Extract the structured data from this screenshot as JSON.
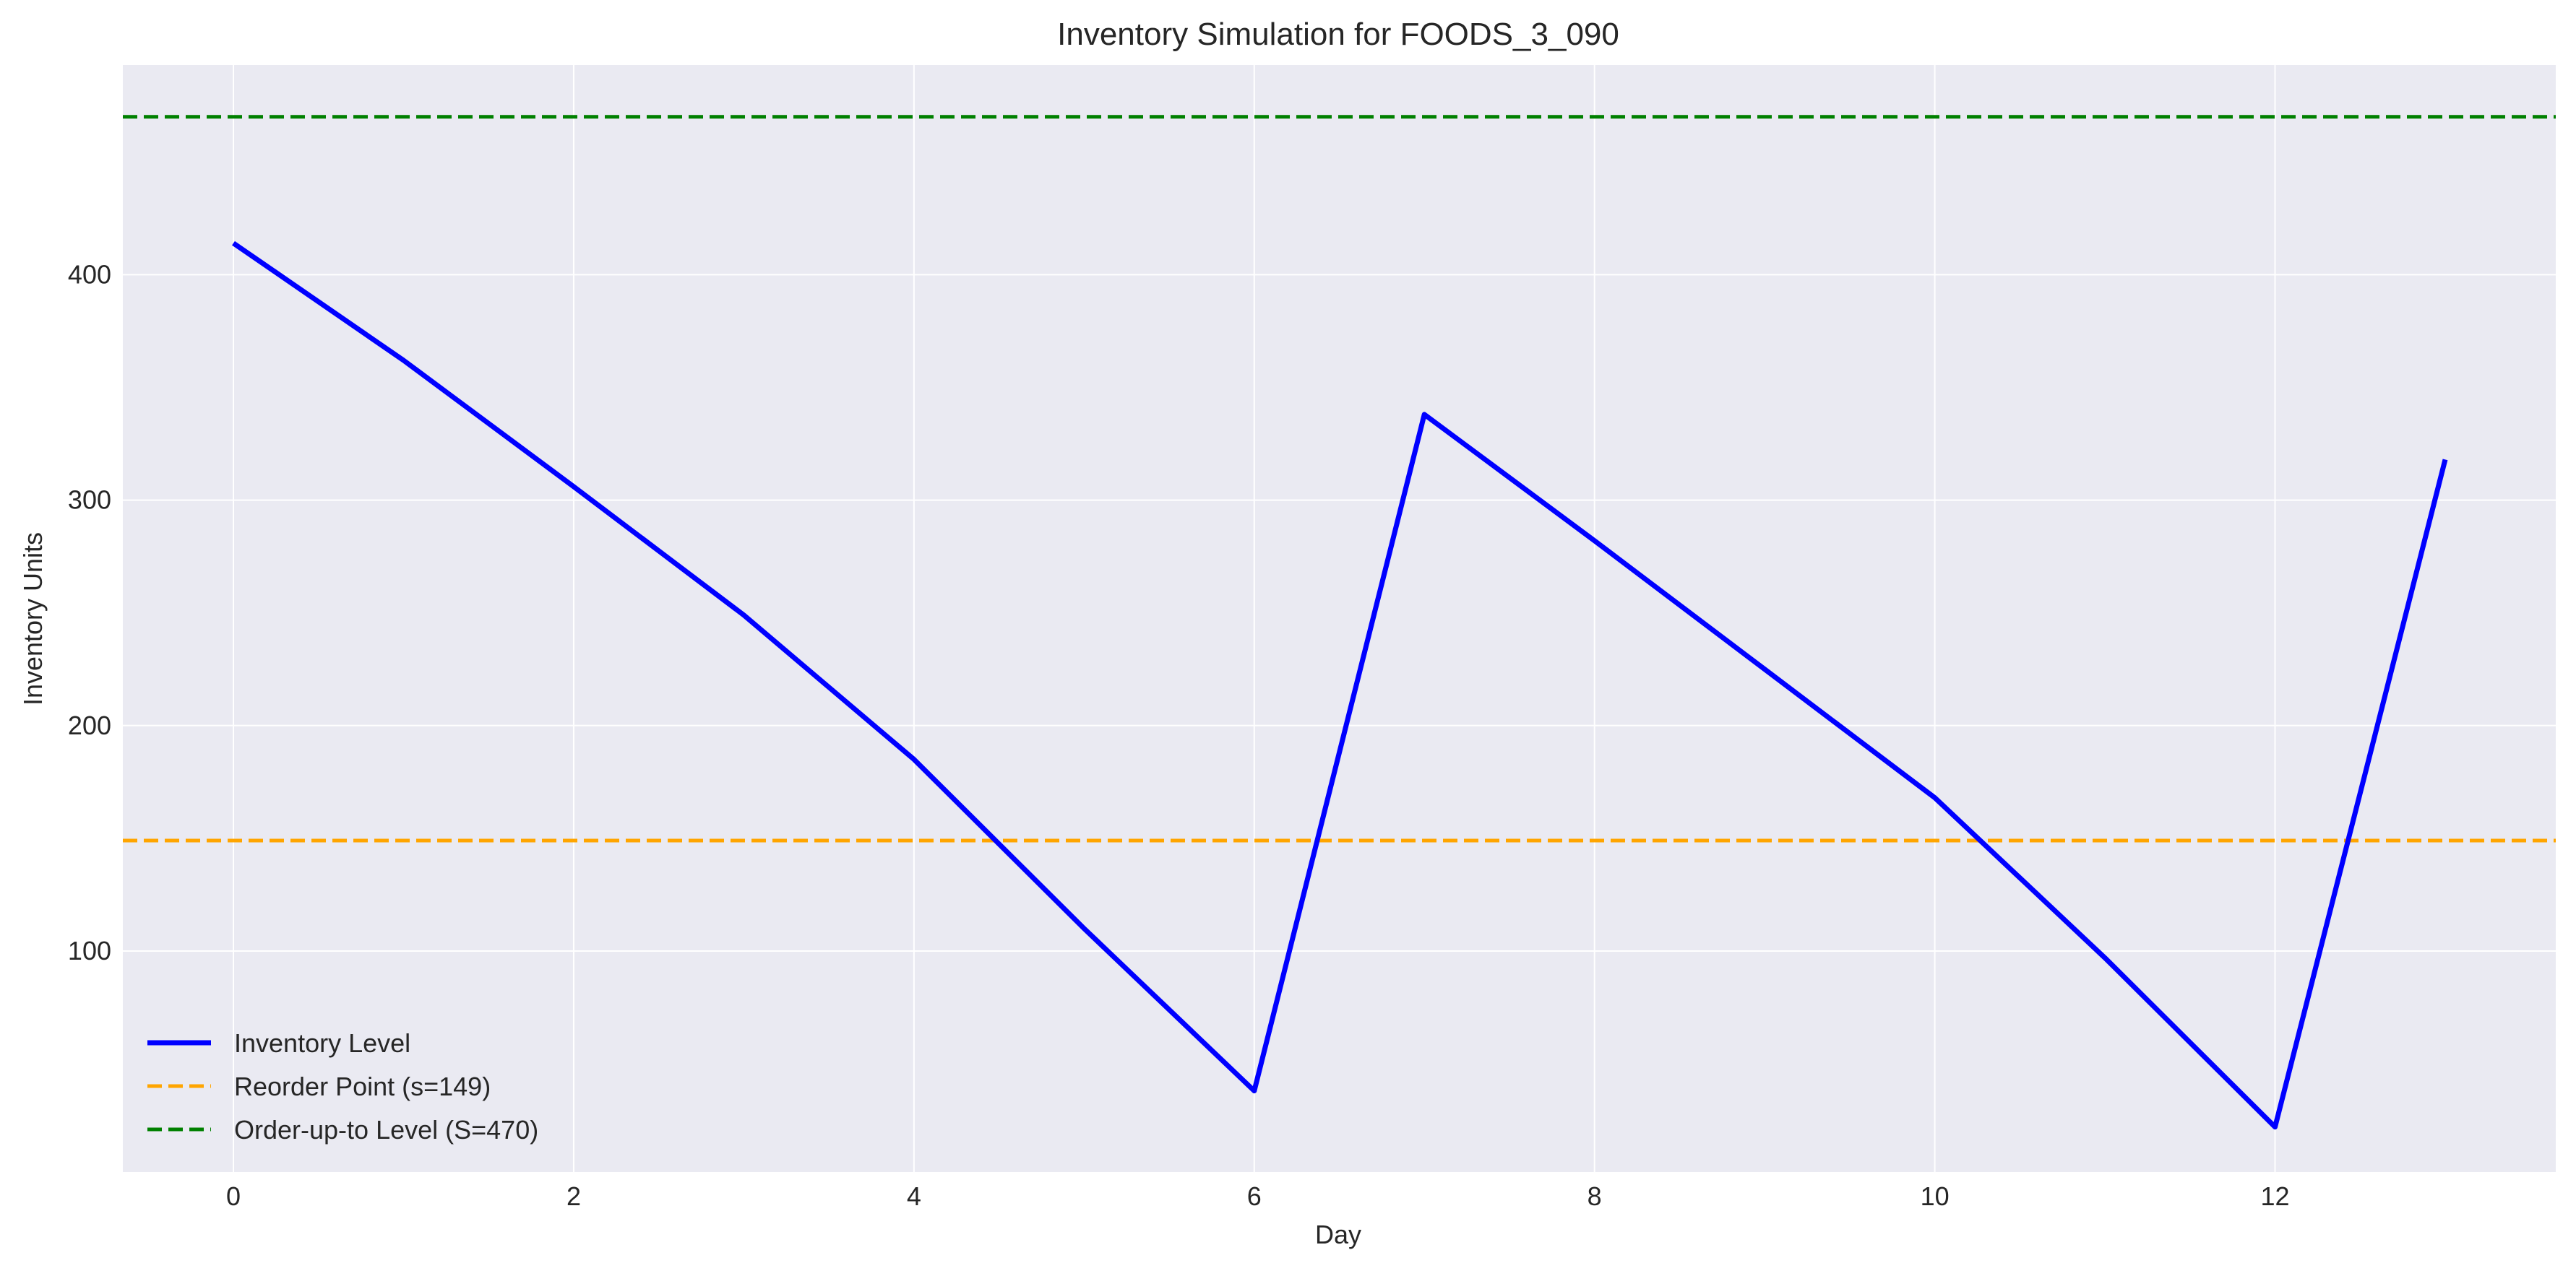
{
  "chart_data": {
    "type": "line",
    "title": "Inventory Simulation for FOODS_3_090",
    "xlabel": "Day",
    "ylabel": "Inventory Units",
    "xlim": [
      -0.65,
      13.65
    ],
    "ylim": [
      2,
      493
    ],
    "xticks": [
      0,
      2,
      4,
      6,
      8,
      10,
      12
    ],
    "yticks": [
      100,
      200,
      300,
      400
    ],
    "grid": true,
    "legend_position": "lower-left",
    "series": [
      {
        "name": "Inventory Level",
        "color": "#0000ff",
        "style": "solid",
        "x": [
          0,
          1,
          2,
          3,
          4,
          5,
          6,
          7,
          8,
          9,
          10,
          11,
          12,
          13
        ],
        "y": [
          414,
          362,
          306,
          249,
          185,
          110,
          38,
          338,
          282,
          225,
          168,
          97,
          22,
          318
        ]
      }
    ],
    "reference_lines": [
      {
        "name": "Reorder Point (s=149)",
        "value": 149,
        "color": "#ffa500",
        "style": "dashed"
      },
      {
        "name": "Order-up-to Level (S=470)",
        "value": 470,
        "color": "#008000",
        "style": "dashed"
      }
    ]
  }
}
